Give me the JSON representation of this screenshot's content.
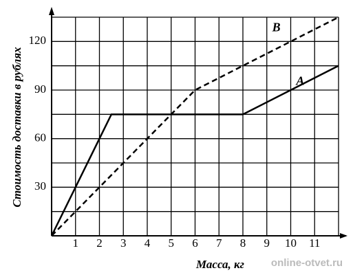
{
  "chart_data": {
    "type": "line",
    "x_label": "Масса, кг",
    "y_label": "Стоимость доставки в рублях",
    "xlim": [
      0,
      12
    ],
    "ylim": [
      0,
      135
    ],
    "xticks": [
      1,
      2,
      3,
      4,
      5,
      6,
      7,
      8,
      9,
      10,
      11
    ],
    "yticks": [
      30,
      60,
      90,
      120
    ],
    "xgrid": [
      1,
      2,
      3,
      4,
      5,
      6,
      7,
      8,
      9,
      10,
      11,
      12
    ],
    "ygrid": [
      15,
      30,
      45,
      60,
      75,
      90,
      105,
      120,
      135
    ],
    "grid": true,
    "series": [
      {
        "name": "A",
        "color": "#000000",
        "dashed": false,
        "x": [
          0,
          2.5,
          8,
          12
        ],
        "values": [
          0,
          75,
          75,
          105
        ]
      },
      {
        "name": "B",
        "color": "#000000",
        "dashed": true,
        "x": [
          0,
          6,
          12
        ],
        "values": [
          0,
          90,
          135
        ]
      }
    ],
    "watermark": "online-otvet.ru"
  }
}
